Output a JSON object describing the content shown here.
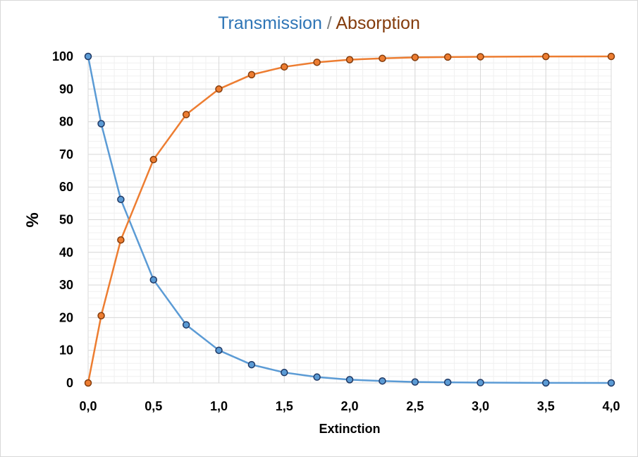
{
  "title": {
    "part1": "Transmission",
    "separator": "/",
    "part2": "Absorption"
  },
  "colors": {
    "transmission": "#5b9bd5",
    "absorption": "#ed7d31",
    "transmission_title": "#2e75b6",
    "absorption_title": "#843c0c",
    "marker_stroke": "#1f3864",
    "absorption_marker_stroke": "#843c0c"
  },
  "chart_data": {
    "type": "line",
    "title": "Transmission / Absorption",
    "xlabel": "Extinction",
    "ylabel": "%",
    "xlim": [
      0,
      4
    ],
    "ylim": [
      0,
      100
    ],
    "grid": true,
    "legend": "none",
    "x_ticks": [
      "0,0",
      "0,5",
      "1,0",
      "1,5",
      "2,0",
      "2,5",
      "3,0",
      "3,5",
      "4,0"
    ],
    "y_ticks": [
      "0",
      "10",
      "20",
      "30",
      "40",
      "50",
      "60",
      "70",
      "80",
      "90",
      "100"
    ],
    "x": [
      0,
      0.1,
      0.25,
      0.5,
      0.75,
      1.0,
      1.25,
      1.5,
      1.75,
      2.0,
      2.25,
      2.5,
      2.75,
      3.0,
      3.5,
      4.0
    ],
    "series": [
      {
        "values": [
          100,
          79.4,
          56.2,
          31.6,
          17.8,
          10.0,
          5.6,
          3.2,
          1.8,
          1.0,
          0.6,
          0.3,
          0.2,
          0.1,
          0.03,
          0.01
        ]
      },
      {
        "values": [
          0,
          20.6,
          43.8,
          68.4,
          82.2,
          90.0,
          94.4,
          96.8,
          98.2,
          99.0,
          99.4,
          99.7,
          99.8,
          99.9,
          99.97,
          99.99
        ]
      }
    ]
  }
}
